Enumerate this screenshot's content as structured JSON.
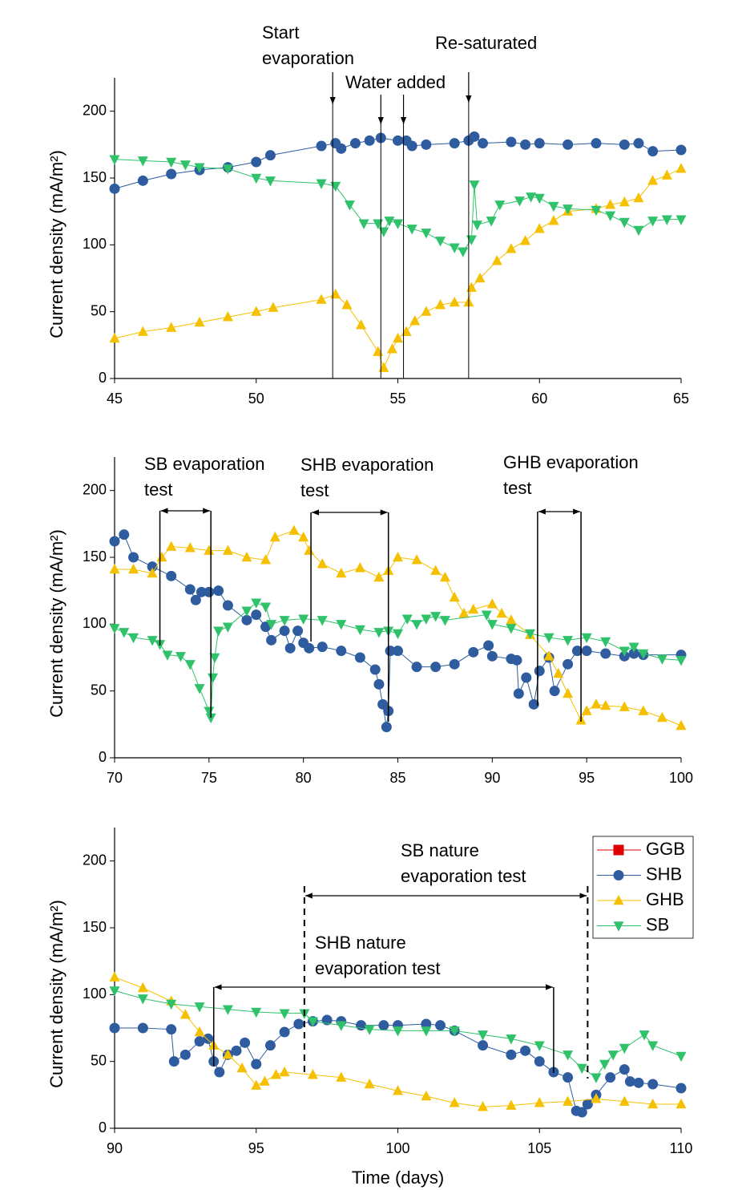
{
  "chart_data": [
    {
      "type": "line",
      "xlim": [
        45,
        65
      ],
      "xticks": [
        45,
        50,
        55,
        60,
        65
      ],
      "ylim": [
        0,
        225
      ],
      "yticks": [
        0,
        50,
        100,
        150,
        200
      ],
      "ylabel": "Current density (mA/m²)",
      "series": [
        {
          "color": "#2e5c9e",
          "marker": "circle",
          "x": [
            45,
            46,
            47,
            48,
            49,
            50,
            50.5,
            52.3,
            52.8,
            53,
            53.5,
            54,
            54.4,
            55,
            55.3,
            55.5,
            56,
            57,
            57.5,
            57.7,
            58,
            59,
            59.5,
            60,
            61,
            62,
            63,
            63.5,
            64,
            65
          ],
          "values": [
            142,
            148,
            153,
            156,
            158,
            162,
            167,
            174,
            176,
            172,
            176,
            178,
            180,
            178,
            178,
            174,
            175,
            176,
            178,
            181,
            176,
            177,
            175,
            176,
            175,
            176,
            175,
            176,
            170,
            171
          ]
        },
        {
          "color": "#f5c000",
          "marker": "triangle-up",
          "x": [
            45,
            46,
            47,
            48,
            49,
            50,
            50.6,
            52.3,
            52.8,
            53.2,
            53.7,
            54.3,
            54.5,
            54.8,
            55,
            55.3,
            55.6,
            56,
            56.5,
            57,
            57.5,
            57.6,
            57.9,
            58.5,
            59,
            59.5,
            60,
            60.5,
            61,
            62,
            62.5,
            63,
            63.5,
            64,
            64.5,
            65
          ],
          "values": [
            30,
            35,
            38,
            42,
            46,
            50,
            53,
            59,
            63,
            55,
            40,
            20,
            8,
            22,
            30,
            35,
            43,
            50,
            55,
            57,
            57,
            68,
            75,
            88,
            97,
            103,
            112,
            118,
            125,
            127,
            130,
            132,
            135,
            148,
            152,
            157
          ]
        },
        {
          "color": "#2fc26b",
          "marker": "triangle-down",
          "x": [
            45,
            46,
            47,
            47.5,
            48,
            49,
            50,
            50.5,
            52.3,
            52.8,
            53.3,
            53.8,
            54.3,
            54.5,
            54.7,
            55,
            55.5,
            56,
            56.5,
            57,
            57.3,
            57.6,
            57.7,
            57.8,
            58.3,
            58.6,
            59.3,
            59.7,
            60,
            60.5,
            61,
            62,
            62.5,
            63,
            63.5,
            64,
            64.5,
            65
          ],
          "values": [
            164,
            163,
            162,
            160,
            158,
            157,
            150,
            148,
            146,
            144,
            130,
            116,
            116,
            110,
            118,
            116,
            112,
            109,
            103,
            98,
            95,
            104,
            145,
            115,
            118,
            130,
            133,
            136,
            135,
            129,
            127,
            126,
            122,
            117,
            111,
            118,
            119,
            119
          ]
        }
      ],
      "annotations": [
        {
          "text": [
            "Start",
            "evaporation"
          ],
          "x": [
            52.7
          ]
        },
        {
          "text": [
            "Water added"
          ],
          "x": [
            54.4,
            55.2
          ]
        },
        {
          "text": [
            "Re-saturated"
          ],
          "x": [
            57.5
          ]
        }
      ]
    },
    {
      "type": "line",
      "xlim": [
        70,
        100
      ],
      "xticks": [
        70,
        75,
        80,
        85,
        90,
        95,
        100
      ],
      "ylim": [
        0,
        225
      ],
      "yticks": [
        0,
        50,
        100,
        150,
        200
      ],
      "ylabel": "Current density (mA/m²)",
      "series": [
        {
          "color": "#2e5c9e",
          "marker": "circle",
          "x": [
            70,
            70.5,
            71,
            72,
            73,
            74,
            74.3,
            74.6,
            75,
            75.5,
            76,
            77,
            77.5,
            78,
            78.3,
            79,
            79.3,
            79.7,
            80,
            80.3,
            81,
            82,
            83,
            83.8,
            84,
            84.2,
            84.4,
            84.5,
            84.6,
            85,
            86,
            87,
            88,
            89,
            89.8,
            90,
            91,
            91.3,
            91.4,
            91.8,
            92.2,
            92.5,
            93,
            93.3,
            94,
            94.5,
            95,
            96,
            97,
            97.5,
            98,
            100
          ],
          "values": [
            162,
            167,
            150,
            143,
            136,
            126,
            118,
            124,
            124,
            125,
            114,
            103,
            107,
            98,
            88,
            95,
            82,
            95,
            86,
            82,
            83,
            80,
            75,
            66,
            55,
            40,
            23,
            35,
            80,
            80,
            68,
            68,
            70,
            79,
            84,
            76,
            74,
            73,
            48,
            60,
            40,
            65,
            75,
            50,
            70,
            80,
            80,
            78,
            76,
            78,
            77,
            77
          ]
        },
        {
          "color": "#f5c000",
          "marker": "triangle-up",
          "x": [
            70,
            71,
            72,
            72.5,
            73,
            74,
            75,
            76,
            77,
            78,
            78.5,
            79.5,
            80,
            80.3,
            81,
            82,
            83,
            84,
            84.5,
            85,
            86,
            87,
            87.5,
            88,
            88.5,
            89,
            90,
            90.5,
            91,
            92,
            93,
            93.5,
            94,
            94.7,
            95,
            95.5,
            96,
            97,
            98,
            99,
            100
          ],
          "values": [
            141,
            141,
            138,
            150,
            158,
            157,
            155,
            155,
            150,
            148,
            165,
            170,
            165,
            155,
            145,
            138,
            142,
            135,
            140,
            150,
            148,
            140,
            135,
            120,
            108,
            111,
            115,
            108,
            103,
            92,
            76,
            63,
            48,
            28,
            35,
            40,
            39,
            38,
            35,
            30,
            24
          ]
        },
        {
          "color": "#2fc26b",
          "marker": "triangle-down",
          "x": [
            70,
            70.5,
            71,
            72,
            72.4,
            72.8,
            73.5,
            74,
            74.5,
            75,
            75.1,
            75.2,
            75.3,
            75.5,
            76,
            77,
            77.5,
            78,
            78.3,
            79,
            80,
            81,
            82,
            83,
            84,
            84.5,
            85,
            85.5,
            86,
            86.5,
            87,
            87.5,
            89.7,
            90,
            91,
            92,
            93,
            94,
            95,
            96,
            97,
            97.5,
            98,
            99,
            100
          ],
          "values": [
            97,
            94,
            90,
            88,
            85,
            77,
            76,
            70,
            52,
            35,
            30,
            60,
            75,
            95,
            98,
            110,
            116,
            113,
            100,
            103,
            104,
            103,
            100,
            96,
            94,
            95,
            93,
            104,
            100,
            104,
            106,
            103,
            107,
            100,
            97,
            93,
            90,
            88,
            90,
            87,
            80,
            83,
            78,
            74,
            73
          ]
        }
      ],
      "annotations": [
        {
          "text": [
            "SB evaporation",
            "test"
          ],
          "span": [
            72.4,
            75.1
          ]
        },
        {
          "text": [
            "SHB evaporation",
            "test"
          ],
          "span": [
            80.4,
            84.5
          ]
        },
        {
          "text": [
            "GHB evaporation",
            "test"
          ],
          "span": [
            92.4,
            94.7
          ]
        }
      ]
    },
    {
      "type": "line",
      "xlim": [
        90,
        110
      ],
      "xticks": [
        90,
        95,
        100,
        105,
        110
      ],
      "ylim": [
        0,
        225
      ],
      "yticks": [
        0,
        50,
        100,
        150,
        200
      ],
      "ylabel": "Current density (mA/m²)",
      "xlabel": "Time (days)",
      "legend": "upper right",
      "series": [
        {
          "name": "GGB",
          "color": "#e00000",
          "marker": "square",
          "x": [],
          "values": []
        },
        {
          "name": "SHB",
          "color": "#2e5c9e",
          "marker": "circle",
          "x": [
            90,
            91,
            92,
            92.1,
            92.5,
            93,
            93.3,
            93.5,
            93.7,
            94,
            94.3,
            94.6,
            95,
            95.5,
            96,
            96.5,
            97,
            97.5,
            98,
            98.7,
            99.5,
            100,
            101,
            101.5,
            102,
            103,
            104,
            104.5,
            105,
            105.5,
            106,
            106.3,
            106.5,
            106.7,
            107,
            107.5,
            108,
            108.2,
            108.5,
            109,
            110
          ],
          "values": [
            75,
            75,
            74,
            50,
            55,
            65,
            67,
            50,
            42,
            55,
            58,
            64,
            48,
            62,
            72,
            78,
            80,
            81,
            80,
            77,
            77,
            77,
            78,
            77,
            73,
            62,
            55,
            58,
            50,
            42,
            38,
            13,
            12,
            18,
            25,
            38,
            44,
            35,
            34,
            33,
            30
          ]
        },
        {
          "name": "GHB",
          "color": "#f5c000",
          "marker": "triangle-up",
          "x": [
            90,
            91,
            92,
            92.5,
            93,
            93.5,
            94,
            94.5,
            95,
            95.3,
            95.7,
            96,
            97,
            98,
            99,
            100,
            101,
            102,
            103,
            104,
            105,
            106,
            107,
            108,
            109,
            110
          ],
          "values": [
            113,
            105,
            95,
            85,
            72,
            62,
            55,
            45,
            32,
            35,
            40,
            42,
            40,
            38,
            33,
            28,
            24,
            19,
            16,
            17,
            19,
            20,
            22,
            20,
            18,
            18
          ]
        },
        {
          "name": "SB",
          "color": "#2fc26b",
          "marker": "triangle-down",
          "x": [
            90,
            91,
            92,
            93,
            94,
            95,
            96,
            96.7,
            97,
            98,
            99,
            100,
            101,
            102,
            103,
            104,
            105,
            106,
            106.5,
            107,
            107.3,
            107.6,
            108,
            108.7,
            109,
            110
          ],
          "values": [
            103,
            97,
            93,
            91,
            89,
            87,
            86,
            86,
            80,
            77,
            74,
            73,
            73,
            73,
            70,
            67,
            62,
            55,
            45,
            38,
            48,
            55,
            60,
            70,
            62,
            54
          ]
        }
      ],
      "annotations": [
        {
          "text": [
            "SB nature",
            "evaporation test"
          ],
          "span": [
            96.7,
            106.7
          ],
          "dashed": true
        },
        {
          "text": [
            "SHB nature",
            "evaporation test"
          ],
          "span": [
            93.5,
            105.5
          ]
        }
      ]
    }
  ]
}
